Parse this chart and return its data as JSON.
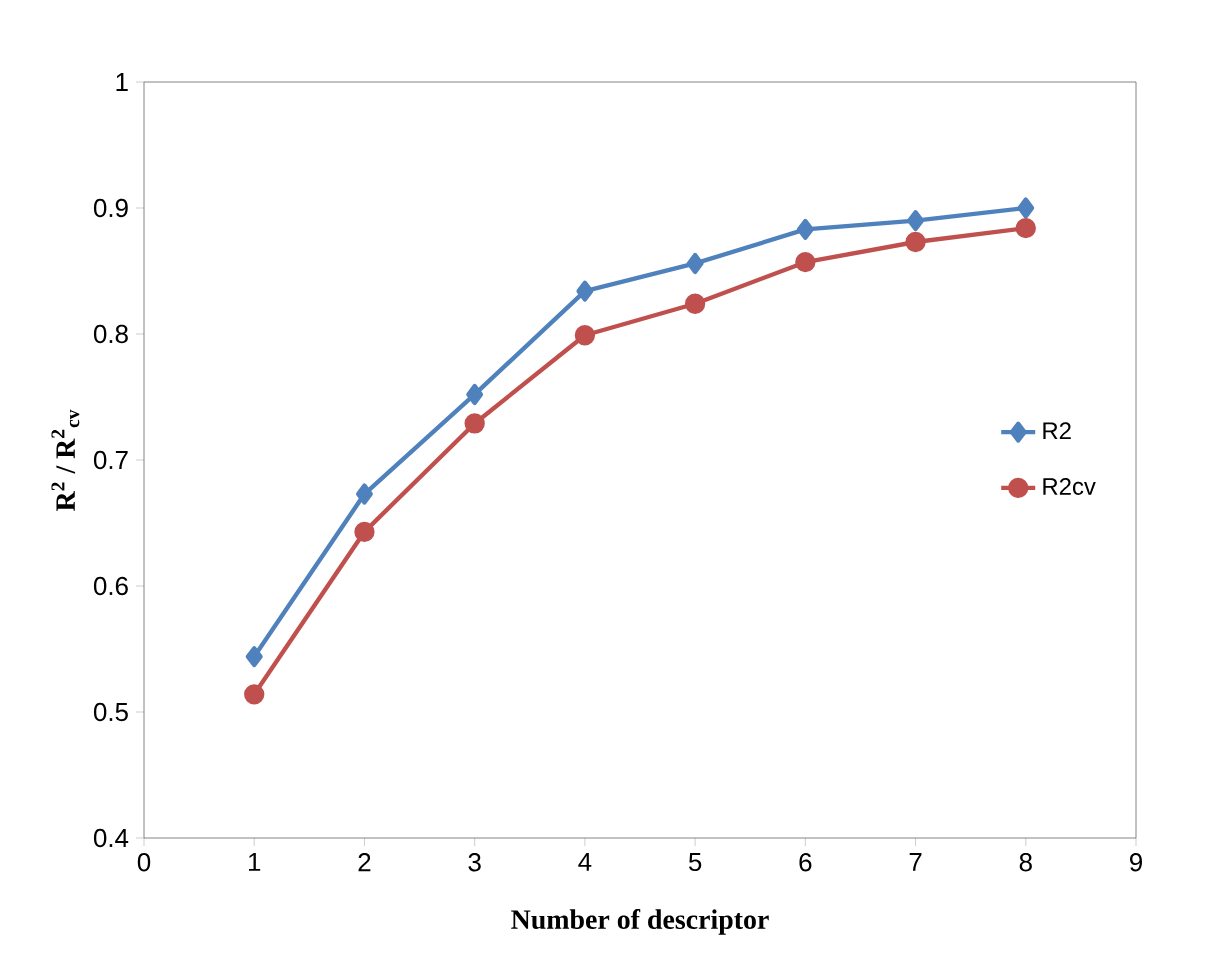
{
  "chart_data": {
    "type": "line",
    "xlabel": "Number of descriptor",
    "ylabel": "R$^{2}$ / R$^{2}$$_{cv}$",
    "x": [
      1,
      2,
      3,
      4,
      5,
      6,
      7,
      8
    ],
    "series": [
      {
        "name": "R2",
        "color": "#4f81bd",
        "marker": "diamond",
        "values": [
          0.544,
          0.673,
          0.752,
          0.834,
          0.856,
          0.883,
          0.89,
          0.9
        ]
      },
      {
        "name": "R2cv",
        "color": "#c0504d",
        "marker": "circle",
        "values": [
          0.514,
          0.643,
          0.729,
          0.799,
          0.824,
          0.857,
          0.873,
          0.884
        ]
      }
    ],
    "xlim": [
      0,
      9
    ],
    "xticks": [
      0,
      1,
      2,
      3,
      4,
      5,
      6,
      7,
      8,
      9
    ],
    "ylim": [
      0.4,
      1
    ],
    "yticks": [
      0.4,
      0.5,
      0.6,
      0.7,
      0.8,
      0.9,
      1
    ],
    "grid": false,
    "legend": "right",
    "line_style": "solid"
  }
}
